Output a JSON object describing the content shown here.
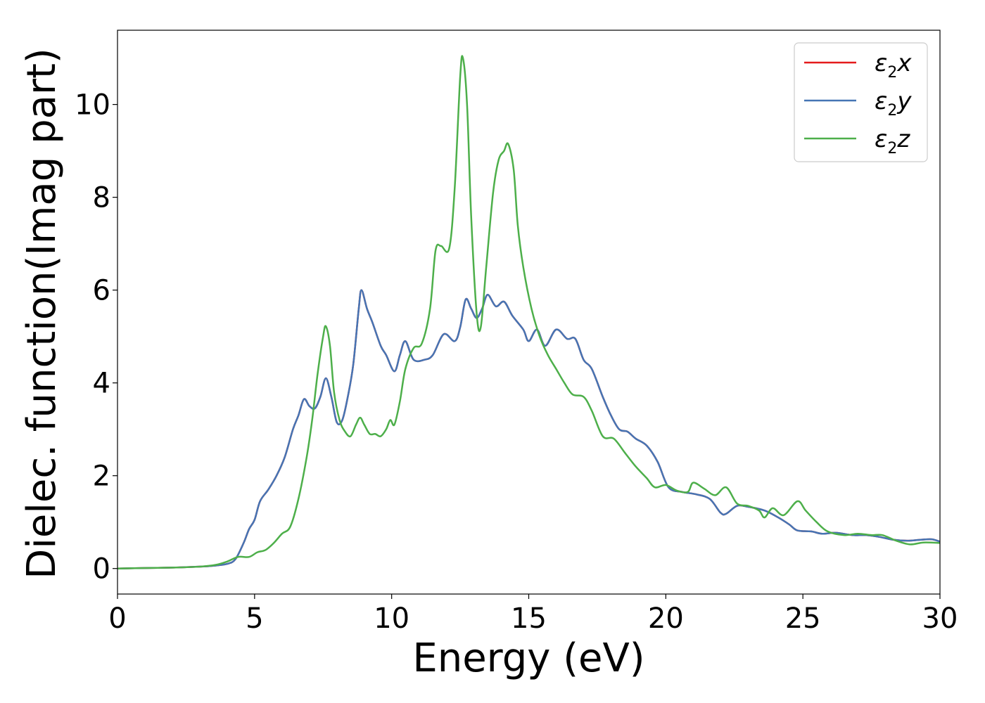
{
  "chart_data": {
    "type": "line",
    "xlabel": "Energy (eV)",
    "ylabel": "Dielec. function(Imag part)",
    "xlim": [
      0,
      30
    ],
    "ylim": [
      -0.55,
      11.6
    ],
    "xticks": [
      0,
      5,
      10,
      15,
      20,
      25,
      30
    ],
    "yticks": [
      0,
      2,
      4,
      6,
      8,
      10
    ],
    "xtick_labels": [
      "0",
      "5",
      "10",
      "15",
      "20",
      "25",
      "30"
    ],
    "ytick_labels": [
      "0",
      "2",
      "4",
      "6",
      "8",
      "10"
    ],
    "grid": false,
    "legend_position": "top-right",
    "series": [
      {
        "name": "ε2x",
        "symbol": "ε",
        "sub": "2",
        "axis": "x",
        "color": "#e41a1c",
        "points": [
          [
            0,
            0
          ],
          [
            1,
            0.01
          ],
          [
            2,
            0.02
          ],
          [
            3,
            0.04
          ],
          [
            3.5,
            0.06
          ],
          [
            4,
            0.1
          ],
          [
            4.3,
            0.2
          ],
          [
            4.6,
            0.55
          ],
          [
            4.8,
            0.85
          ],
          [
            5,
            1.05
          ],
          [
            5.2,
            1.45
          ],
          [
            5.5,
            1.7
          ],
          [
            5.8,
            2.0
          ],
          [
            6.1,
            2.4
          ],
          [
            6.4,
            3.0
          ],
          [
            6.6,
            3.3
          ],
          [
            6.8,
            3.65
          ],
          [
            7.0,
            3.5
          ],
          [
            7.2,
            3.45
          ],
          [
            7.4,
            3.7
          ],
          [
            7.6,
            4.1
          ],
          [
            7.8,
            3.7
          ],
          [
            8.0,
            3.15
          ],
          [
            8.2,
            3.2
          ],
          [
            8.4,
            3.7
          ],
          [
            8.6,
            4.4
          ],
          [
            8.8,
            5.6
          ],
          [
            8.9,
            6.0
          ],
          [
            9.1,
            5.6
          ],
          [
            9.3,
            5.3
          ],
          [
            9.6,
            4.8
          ],
          [
            9.8,
            4.6
          ],
          [
            10.1,
            4.25
          ],
          [
            10.3,
            4.6
          ],
          [
            10.5,
            4.9
          ],
          [
            10.8,
            4.5
          ],
          [
            11.2,
            4.5
          ],
          [
            11.5,
            4.6
          ],
          [
            11.9,
            5.05
          ],
          [
            12.3,
            4.9
          ],
          [
            12.5,
            5.2
          ],
          [
            12.7,
            5.8
          ],
          [
            12.9,
            5.6
          ],
          [
            13.1,
            5.4
          ],
          [
            13.3,
            5.6
          ],
          [
            13.5,
            5.9
          ],
          [
            13.8,
            5.65
          ],
          [
            14.1,
            5.75
          ],
          [
            14.4,
            5.45
          ],
          [
            14.8,
            5.15
          ],
          [
            15.0,
            4.9
          ],
          [
            15.3,
            5.15
          ],
          [
            15.6,
            4.8
          ],
          [
            16.0,
            5.15
          ],
          [
            16.4,
            4.95
          ],
          [
            16.7,
            4.95
          ],
          [
            17.0,
            4.5
          ],
          [
            17.3,
            4.3
          ],
          [
            17.7,
            3.7
          ],
          [
            18.0,
            3.3
          ],
          [
            18.3,
            3.0
          ],
          [
            18.6,
            2.95
          ],
          [
            18.9,
            2.8
          ],
          [
            19.3,
            2.65
          ],
          [
            19.7,
            2.3
          ],
          [
            20.1,
            1.75
          ],
          [
            20.6,
            1.65
          ],
          [
            21.1,
            1.6
          ],
          [
            21.6,
            1.5
          ],
          [
            22.0,
            1.2
          ],
          [
            22.2,
            1.18
          ],
          [
            22.6,
            1.35
          ],
          [
            23.0,
            1.33
          ],
          [
            23.6,
            1.25
          ],
          [
            24.1,
            1.1
          ],
          [
            24.5,
            0.95
          ],
          [
            24.8,
            0.82
          ],
          [
            25.3,
            0.8
          ],
          [
            25.7,
            0.75
          ],
          [
            26.2,
            0.77
          ],
          [
            26.8,
            0.72
          ],
          [
            27.3,
            0.72
          ],
          [
            27.8,
            0.68
          ],
          [
            28.3,
            0.62
          ],
          [
            28.8,
            0.6
          ],
          [
            29.3,
            0.62
          ],
          [
            29.7,
            0.63
          ],
          [
            30,
            0.58
          ]
        ]
      },
      {
        "name": "ε2y",
        "symbol": "ε",
        "sub": "2",
        "axis": "y",
        "color": "#4575b4",
        "points": [
          [
            0,
            0
          ],
          [
            1,
            0.01
          ],
          [
            2,
            0.02
          ],
          [
            3,
            0.04
          ],
          [
            3.5,
            0.06
          ],
          [
            4,
            0.1
          ],
          [
            4.3,
            0.2
          ],
          [
            4.6,
            0.55
          ],
          [
            4.8,
            0.85
          ],
          [
            5,
            1.05
          ],
          [
            5.2,
            1.45
          ],
          [
            5.5,
            1.7
          ],
          [
            5.8,
            2.0
          ],
          [
            6.1,
            2.4
          ],
          [
            6.4,
            3.0
          ],
          [
            6.6,
            3.3
          ],
          [
            6.8,
            3.65
          ],
          [
            7.0,
            3.5
          ],
          [
            7.2,
            3.45
          ],
          [
            7.4,
            3.7
          ],
          [
            7.6,
            4.1
          ],
          [
            7.8,
            3.7
          ],
          [
            8.0,
            3.15
          ],
          [
            8.2,
            3.2
          ],
          [
            8.4,
            3.7
          ],
          [
            8.6,
            4.4
          ],
          [
            8.8,
            5.6
          ],
          [
            8.9,
            6.0
          ],
          [
            9.1,
            5.6
          ],
          [
            9.3,
            5.3
          ],
          [
            9.6,
            4.8
          ],
          [
            9.8,
            4.6
          ],
          [
            10.1,
            4.25
          ],
          [
            10.3,
            4.6
          ],
          [
            10.5,
            4.9
          ],
          [
            10.8,
            4.5
          ],
          [
            11.2,
            4.5
          ],
          [
            11.5,
            4.6
          ],
          [
            11.9,
            5.05
          ],
          [
            12.3,
            4.9
          ],
          [
            12.5,
            5.2
          ],
          [
            12.7,
            5.8
          ],
          [
            12.9,
            5.6
          ],
          [
            13.1,
            5.4
          ],
          [
            13.3,
            5.6
          ],
          [
            13.5,
            5.9
          ],
          [
            13.8,
            5.65
          ],
          [
            14.1,
            5.75
          ],
          [
            14.4,
            5.45
          ],
          [
            14.8,
            5.15
          ],
          [
            15.0,
            4.9
          ],
          [
            15.3,
            5.15
          ],
          [
            15.6,
            4.8
          ],
          [
            16.0,
            5.15
          ],
          [
            16.4,
            4.95
          ],
          [
            16.7,
            4.95
          ],
          [
            17.0,
            4.5
          ],
          [
            17.3,
            4.3
          ],
          [
            17.7,
            3.7
          ],
          [
            18.0,
            3.3
          ],
          [
            18.3,
            3.0
          ],
          [
            18.6,
            2.95
          ],
          [
            18.9,
            2.8
          ],
          [
            19.3,
            2.65
          ],
          [
            19.7,
            2.3
          ],
          [
            20.1,
            1.75
          ],
          [
            20.6,
            1.65
          ],
          [
            21.1,
            1.6
          ],
          [
            21.6,
            1.5
          ],
          [
            22.0,
            1.2
          ],
          [
            22.2,
            1.18
          ],
          [
            22.6,
            1.35
          ],
          [
            23.0,
            1.33
          ],
          [
            23.6,
            1.25
          ],
          [
            24.1,
            1.1
          ],
          [
            24.5,
            0.95
          ],
          [
            24.8,
            0.82
          ],
          [
            25.3,
            0.8
          ],
          [
            25.7,
            0.75
          ],
          [
            26.2,
            0.77
          ],
          [
            26.8,
            0.72
          ],
          [
            27.3,
            0.72
          ],
          [
            27.8,
            0.68
          ],
          [
            28.3,
            0.62
          ],
          [
            28.8,
            0.6
          ],
          [
            29.3,
            0.62
          ],
          [
            29.7,
            0.63
          ],
          [
            30,
            0.58
          ]
        ]
      },
      {
        "name": "ε2z",
        "symbol": "ε",
        "sub": "2",
        "axis": "z",
        "color": "#4daf4a",
        "points": [
          [
            0,
            0
          ],
          [
            1,
            0.01
          ],
          [
            2,
            0.02
          ],
          [
            3,
            0.04
          ],
          [
            3.6,
            0.08
          ],
          [
            4.0,
            0.15
          ],
          [
            4.4,
            0.25
          ],
          [
            4.8,
            0.25
          ],
          [
            5.1,
            0.35
          ],
          [
            5.4,
            0.4
          ],
          [
            5.7,
            0.55
          ],
          [
            6.0,
            0.75
          ],
          [
            6.3,
            0.9
          ],
          [
            6.6,
            1.5
          ],
          [
            6.9,
            2.4
          ],
          [
            7.1,
            3.2
          ],
          [
            7.3,
            4.2
          ],
          [
            7.5,
            5.0
          ],
          [
            7.6,
            5.22
          ],
          [
            7.75,
            4.8
          ],
          [
            7.9,
            3.8
          ],
          [
            8.1,
            3.2
          ],
          [
            8.3,
            2.95
          ],
          [
            8.5,
            2.85
          ],
          [
            8.7,
            3.1
          ],
          [
            8.85,
            3.25
          ],
          [
            9.0,
            3.1
          ],
          [
            9.2,
            2.9
          ],
          [
            9.4,
            2.9
          ],
          [
            9.6,
            2.85
          ],
          [
            9.8,
            3.0
          ],
          [
            9.95,
            3.2
          ],
          [
            10.1,
            3.1
          ],
          [
            10.3,
            3.6
          ],
          [
            10.5,
            4.3
          ],
          [
            10.8,
            4.75
          ],
          [
            11.1,
            4.85
          ],
          [
            11.4,
            5.6
          ],
          [
            11.6,
            6.85
          ],
          [
            11.8,
            6.95
          ],
          [
            12.1,
            6.9
          ],
          [
            12.3,
            8.2
          ],
          [
            12.5,
            10.6
          ],
          [
            12.6,
            11.0
          ],
          [
            12.75,
            10.0
          ],
          [
            12.9,
            7.6
          ],
          [
            13.1,
            5.5
          ],
          [
            13.25,
            5.2
          ],
          [
            13.45,
            6.5
          ],
          [
            13.7,
            8.1
          ],
          [
            13.9,
            8.8
          ],
          [
            14.1,
            9.0
          ],
          [
            14.25,
            9.15
          ],
          [
            14.45,
            8.6
          ],
          [
            14.6,
            7.4
          ],
          [
            14.8,
            6.5
          ],
          [
            15.1,
            5.6
          ],
          [
            15.4,
            5.0
          ],
          [
            15.7,
            4.6
          ],
          [
            16.0,
            4.3
          ],
          [
            16.3,
            4.0
          ],
          [
            16.6,
            3.75
          ],
          [
            17.0,
            3.7
          ],
          [
            17.3,
            3.4
          ],
          [
            17.7,
            2.85
          ],
          [
            18.1,
            2.8
          ],
          [
            18.5,
            2.5
          ],
          [
            18.9,
            2.2
          ],
          [
            19.3,
            1.95
          ],
          [
            19.6,
            1.75
          ],
          [
            20.0,
            1.8
          ],
          [
            20.4,
            1.68
          ],
          [
            20.8,
            1.65
          ],
          [
            21.0,
            1.85
          ],
          [
            21.4,
            1.72
          ],
          [
            21.8,
            1.58
          ],
          [
            22.2,
            1.75
          ],
          [
            22.6,
            1.4
          ],
          [
            23.0,
            1.35
          ],
          [
            23.4,
            1.25
          ],
          [
            23.6,
            1.1
          ],
          [
            23.9,
            1.3
          ],
          [
            24.3,
            1.15
          ],
          [
            24.8,
            1.45
          ],
          [
            25.1,
            1.25
          ],
          [
            25.5,
            1.0
          ],
          [
            25.9,
            0.8
          ],
          [
            26.5,
            0.72
          ],
          [
            27.0,
            0.75
          ],
          [
            27.5,
            0.72
          ],
          [
            27.9,
            0.72
          ],
          [
            28.4,
            0.6
          ],
          [
            28.9,
            0.52
          ],
          [
            29.4,
            0.56
          ],
          [
            30,
            0.55
          ]
        ]
      }
    ]
  }
}
